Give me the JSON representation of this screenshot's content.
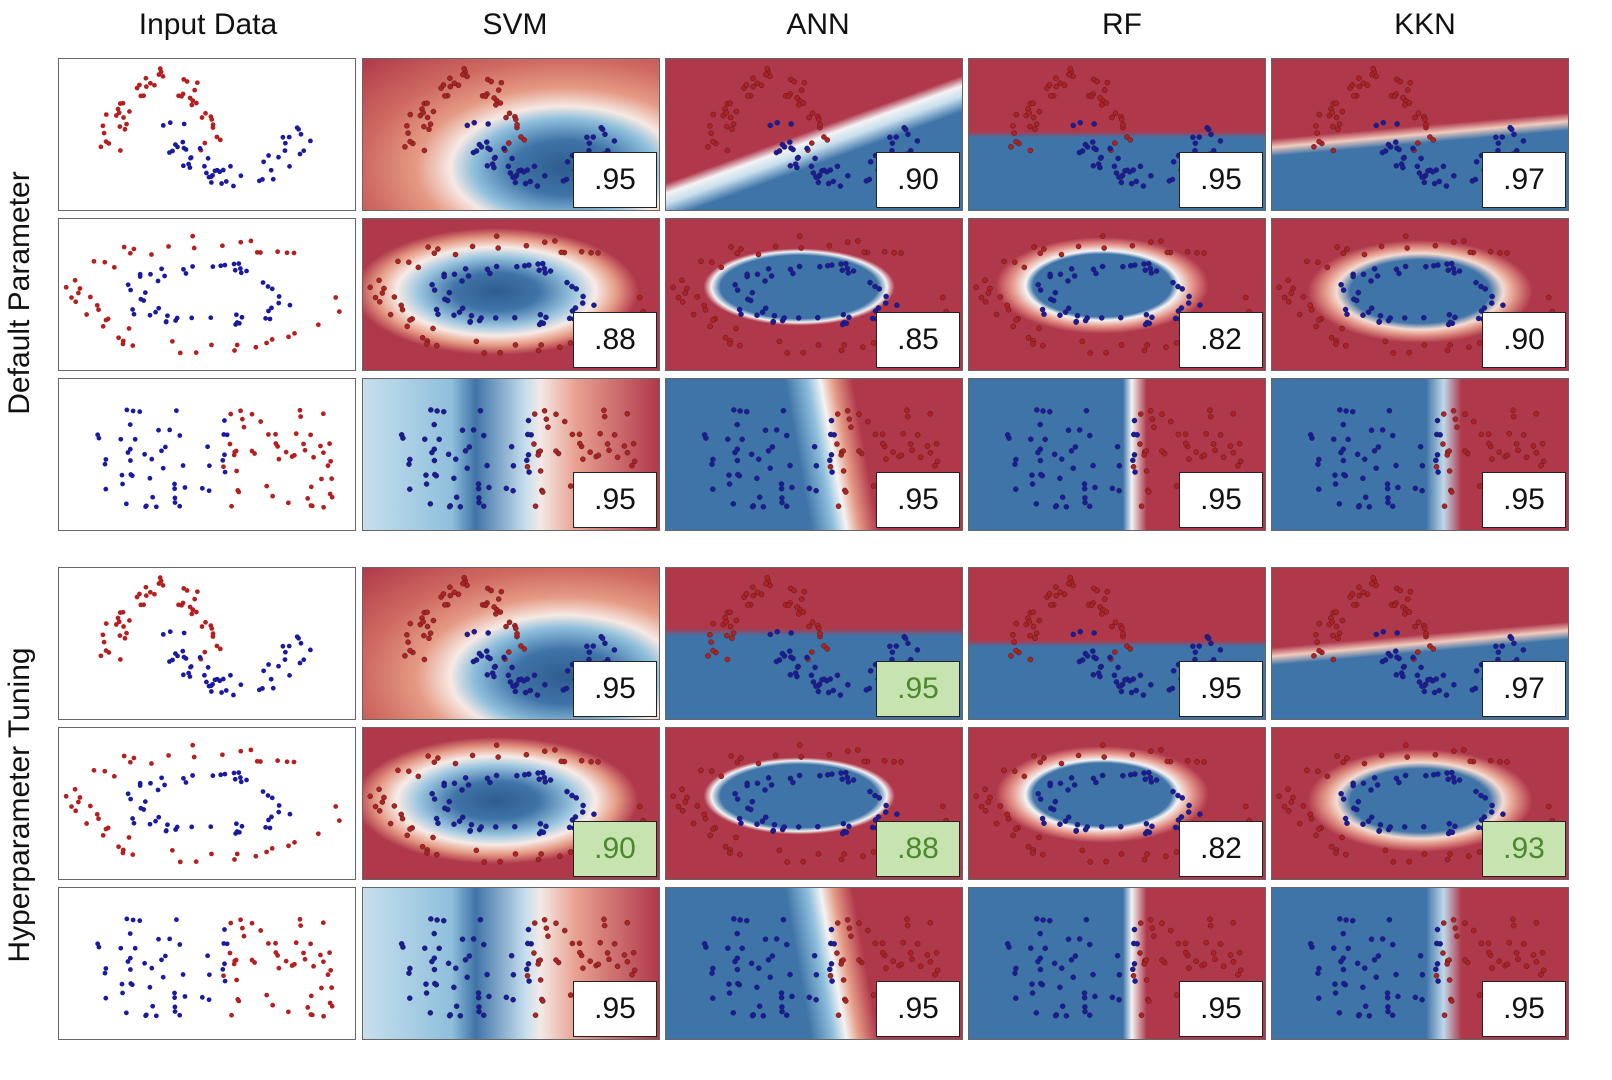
{
  "columns": [
    "Input Data",
    "SVM",
    "ANN",
    "RF",
    "KKN"
  ],
  "row_groups": [
    "Default Parameter",
    "Hyperparameter Tuning"
  ],
  "colors": {
    "red_point": "#b41f1f",
    "blue_point": "#1a1aa0",
    "red_region": "#b0384b",
    "blue_region": "#3f74a8",
    "improved_box": "#c6e3b0",
    "improved_text": "#4a8a2c"
  },
  "chart_data": {
    "type": "table",
    "rows": [
      {
        "group": "Default Parameter",
        "dataset": "moons",
        "SVM": ".95",
        "ANN": ".90",
        "RF": ".95",
        "KKN": ".97"
      },
      {
        "group": "Default Parameter",
        "dataset": "circles",
        "SVM": ".88",
        "ANN": ".85",
        "RF": ".82",
        "KKN": ".90"
      },
      {
        "group": "Default Parameter",
        "dataset": "linear",
        "SVM": ".95",
        "ANN": ".95",
        "RF": ".95",
        "KKN": ".95"
      },
      {
        "group": "Hyperparameter Tuning",
        "dataset": "moons",
        "SVM": ".95",
        "ANN": ".95",
        "RF": ".95",
        "KKN": ".97"
      },
      {
        "group": "Hyperparameter Tuning",
        "dataset": "circles",
        "SVM": ".90",
        "ANN": ".88",
        "RF": ".82",
        "KKN": ".93"
      },
      {
        "group": "Hyperparameter Tuning",
        "dataset": "linear",
        "SVM": ".95",
        "ANN": ".95",
        "RF": ".95",
        "KKN": ".95"
      }
    ],
    "improved": [
      {
        "row": 3,
        "model": "ANN"
      },
      {
        "row": 4,
        "model": "SVM"
      },
      {
        "row": 4,
        "model": "ANN"
      },
      {
        "row": 4,
        "model": "KKN"
      }
    ]
  }
}
